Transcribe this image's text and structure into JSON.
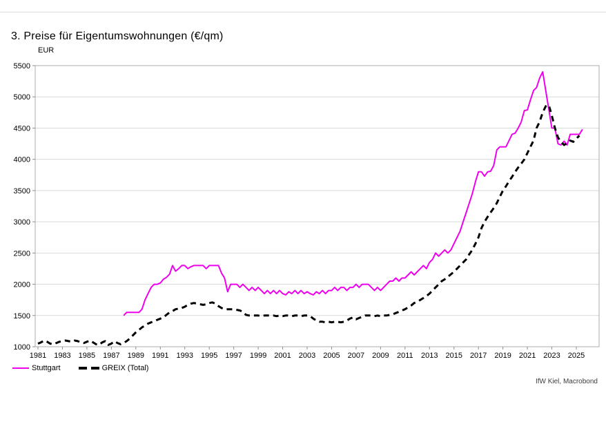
{
  "header": {
    "title": "3. Preise für Eigentumswohnungen (€/qm)"
  },
  "source": "IfW Kiel, Macrobond",
  "colors": {
    "stuttgart": "#EE00EE",
    "greix": "#000000",
    "grid": "#d9d9d9",
    "axis": "#ababab",
    "tick": "#8c8c8c"
  },
  "chart_data": {
    "type": "line",
    "title": "3. Preise für Eigentumswohnungen (€/qm)",
    "ylabel": "EUR",
    "xlabel": "",
    "ylim": [
      1000,
      5500
    ],
    "xlim": [
      1980.8,
      2026.9
    ],
    "grid": "horizontal",
    "legend_position": "bottom-left",
    "y_ticks": [
      1000,
      1500,
      2000,
      2500,
      3000,
      3500,
      4000,
      4500,
      5000,
      5500
    ],
    "x_ticks": [
      1981,
      1983,
      1985,
      1987,
      1989,
      1991,
      1993,
      1995,
      1997,
      1999,
      2001,
      2003,
      2005,
      2007,
      2009,
      2011,
      2013,
      2015,
      2017,
      2019,
      2021,
      2023,
      2025
    ],
    "points_per_year": 4,
    "series": [
      {
        "name": "Stuttgart",
        "style": "solid",
        "color": "#EE00EE",
        "start_year": 1988,
        "values": [
          1500,
          1550,
          1550,
          1550,
          1550,
          1550,
          1600,
          1750,
          1850,
          1950,
          2000,
          2000,
          2020,
          2080,
          2110,
          2160,
          2300,
          2210,
          2250,
          2300,
          2300,
          2250,
          2280,
          2300,
          2300,
          2300,
          2300,
          2250,
          2300,
          2300,
          2300,
          2300,
          2180,
          2100,
          1880,
          2000,
          2000,
          2000,
          1950,
          2000,
          1950,
          1900,
          1950,
          1900,
          1950,
          1900,
          1850,
          1900,
          1850,
          1900,
          1850,
          1900,
          1850,
          1830,
          1880,
          1850,
          1900,
          1850,
          1900,
          1850,
          1880,
          1850,
          1830,
          1880,
          1850,
          1900,
          1850,
          1900,
          1900,
          1950,
          1900,
          1950,
          1950,
          1900,
          1950,
          1950,
          2000,
          1950,
          2000,
          2000,
          2000,
          1950,
          1900,
          1950,
          1900,
          1950,
          2000,
          2050,
          2050,
          2100,
          2050,
          2100,
          2100,
          2150,
          2200,
          2150,
          2200,
          2250,
          2300,
          2250,
          2350,
          2400,
          2500,
          2450,
          2500,
          2550,
          2500,
          2550,
          2650,
          2750,
          2850,
          3000,
          3150,
          3300,
          3450,
          3640,
          3800,
          3800,
          3730,
          3800,
          3810,
          3900,
          4150,
          4200,
          4200,
          4200,
          4300,
          4400,
          4420,
          4500,
          4600,
          4780,
          4790,
          4950,
          5100,
          5150,
          5300,
          5400,
          5100,
          4800,
          4500,
          4500,
          4250,
          4230,
          4290,
          4230,
          4400,
          4400,
          4400,
          4400,
          4480
        ]
      },
      {
        "name": "GREIX (Total)",
        "style": "dashed",
        "color": "#000000",
        "start_year": 1981,
        "values": [
          1050,
          1070,
          1100,
          1080,
          1050,
          1040,
          1060,
          1080,
          1090,
          1100,
          1090,
          1080,
          1100,
          1090,
          1070,
          1060,
          1080,
          1100,
          1070,
          1040,
          1030,
          1070,
          1090,
          1030,
          1050,
          1090,
          1060,
          1040,
          1060,
          1090,
          1130,
          1180,
          1230,
          1270,
          1310,
          1340,
          1370,
          1390,
          1410,
          1430,
          1450,
          1470,
          1510,
          1550,
          1570,
          1600,
          1610,
          1620,
          1640,
          1670,
          1690,
          1700,
          1690,
          1680,
          1670,
          1680,
          1700,
          1710,
          1690,
          1650,
          1620,
          1600,
          1600,
          1600,
          1600,
          1590,
          1580,
          1560,
          1510,
          1500,
          1500,
          1500,
          1500,
          1490,
          1500,
          1500,
          1500,
          1500,
          1490,
          1500,
          1490,
          1500,
          1500,
          1490,
          1500,
          1500,
          1490,
          1500,
          1500,
          1490,
          1450,
          1420,
          1400,
          1400,
          1390,
          1400,
          1390,
          1400,
          1400,
          1390,
          1400,
          1420,
          1450,
          1470,
          1440,
          1460,
          1480,
          1500,
          1500,
          1500,
          1490,
          1500,
          1490,
          1500,
          1500,
          1510,
          1520,
          1540,
          1560,
          1580,
          1600,
          1630,
          1660,
          1700,
          1720,
          1750,
          1780,
          1810,
          1850,
          1900,
          1950,
          2000,
          2050,
          2080,
          2120,
          2160,
          2200,
          2250,
          2300,
          2350,
          2400,
          2480,
          2550,
          2650,
          2750,
          2900,
          3000,
          3080,
          3150,
          3220,
          3300,
          3400,
          3500,
          3570,
          3650,
          3720,
          3800,
          3870,
          3930,
          4000,
          4100,
          4200,
          4300,
          4500,
          4600,
          4750,
          4850,
          4870,
          4700,
          4500,
          4350,
          4280,
          4230,
          4260,
          4300,
          4280,
          4330,
          4380
        ]
      }
    ]
  },
  "legend": {
    "items": [
      {
        "label": "Stuttgart"
      },
      {
        "label": "GREIX (Total)"
      }
    ]
  }
}
